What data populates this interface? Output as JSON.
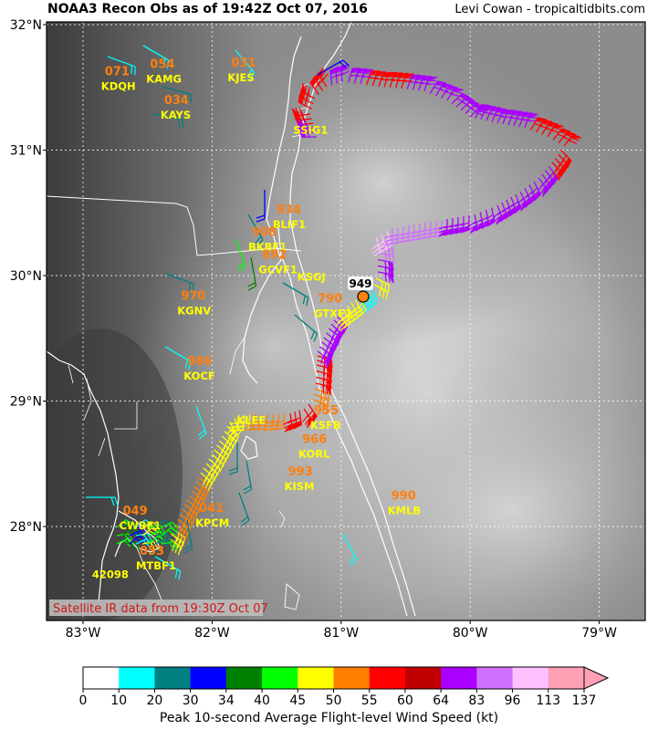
{
  "title": "NOAA3 Recon Obs as of 19:42Z Oct 07, 2016",
  "credit": "Levi Cowan - tropicaltidbits.com",
  "satellite_note": "Satellite IR data from 19:30Z Oct 07",
  "colorbar_title": "Peak 10-second Average Flight-level Wind Speed (kt)",
  "lat_ticks": [
    "32°N",
    "31°N",
    "30°N",
    "29°N",
    "28°N"
  ],
  "lon_ticks": [
    "83°W",
    "82°W",
    "81°W",
    "80°W",
    "79°W"
  ],
  "colorbar": {
    "colors": [
      "#ffffff",
      "#00ffff",
      "#008080",
      "#0000ff",
      "#008000",
      "#00ff00",
      "#ffff00",
      "#ff8000",
      "#ff0000",
      "#c00000",
      "#aa00ff",
      "#d070ff",
      "#ffc0ff",
      "#ffa0b4"
    ],
    "labels": [
      "0",
      "10",
      "20",
      "30",
      "34",
      "40",
      "45",
      "50",
      "55",
      "60",
      "64",
      "83",
      "96",
      "113",
      "137"
    ]
  },
  "pressure_min": "949",
  "stations": [
    {
      "id": "KDQH",
      "p": "071",
      "lon": -82.86,
      "lat": 31.48
    },
    {
      "id": "KAMG",
      "p": "054",
      "lon": -82.51,
      "lat": 31.54
    },
    {
      "id": "KAYS",
      "p": "034",
      "lon": -82.4,
      "lat": 31.25
    },
    {
      "id": "KJES",
      "p": "031",
      "lon": -81.88,
      "lat": 31.55
    },
    {
      "id": "SSIG1",
      "p": "",
      "lon": -81.37,
      "lat": 31.13
    },
    {
      "id": "BLIF1",
      "p": "934",
      "lon": -81.53,
      "lat": 30.38
    },
    {
      "id": "BKBF1",
      "p": "908",
      "lon": -81.72,
      "lat": 30.2
    },
    {
      "id": "GCVF1",
      "p": "892",
      "lon": -81.64,
      "lat": 30.02
    },
    {
      "id": "KSGJ",
      "p": "",
      "lon": -81.34,
      "lat": 29.96
    },
    {
      "id": "GTXF1",
      "p": "790",
      "lon": -81.21,
      "lat": 29.67
    },
    {
      "id": "KGNV",
      "p": "970",
      "lon": -82.27,
      "lat": 29.69
    },
    {
      "id": "KOCF",
      "p": "986",
      "lon": -82.22,
      "lat": 29.17
    },
    {
      "id": "KLEE",
      "p": "",
      "lon": -81.81,
      "lat": 28.82
    },
    {
      "id": "KSFB",
      "p": "955",
      "lon": -81.24,
      "lat": 28.78
    },
    {
      "id": "KORL",
      "p": "966",
      "lon": -81.33,
      "lat": 28.55
    },
    {
      "id": "KISM",
      "p": "993",
      "lon": -81.44,
      "lat": 28.29
    },
    {
      "id": "KMLB",
      "p": "990",
      "lon": -80.64,
      "lat": 28.1
    },
    {
      "id": "KPCM",
      "p": "041",
      "lon": -82.13,
      "lat": 28.0
    },
    {
      "id": "CWBF1",
      "p": "049",
      "lon": -82.72,
      "lat": 27.98
    },
    {
      "id": "MTBF1",
      "p": "053",
      "lon": -82.59,
      "lat": 27.66
    },
    {
      "id": "42098",
      "p": "",
      "lon": -82.93,
      "lat": 27.59
    }
  ]
}
